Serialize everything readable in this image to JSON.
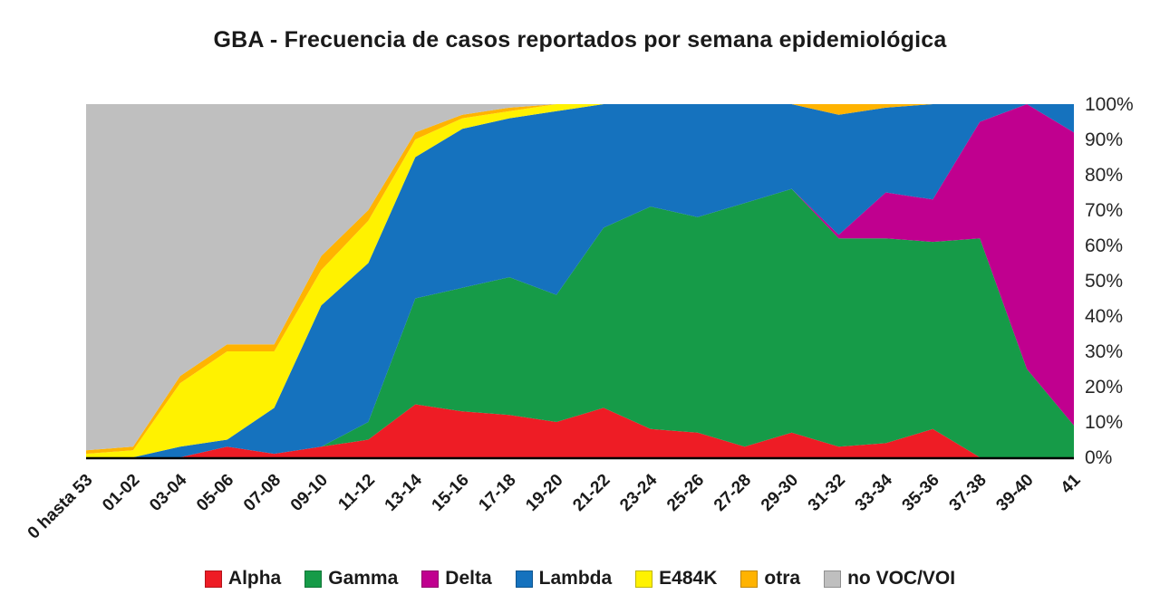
{
  "chart_data": {
    "type": "area",
    "stacked": true,
    "percent_stacked": true,
    "title": "GBA - Frecuencia de casos reportados por semana epidemiológica",
    "xlabel": "",
    "ylabel": "",
    "ylim": [
      0,
      100
    ],
    "grid": false,
    "legend_position": "bottom",
    "y_axis_side": "right",
    "y_ticks": [
      "0%",
      "10%",
      "20%",
      "30%",
      "40%",
      "50%",
      "60%",
      "70%",
      "80%",
      "90%",
      "100%"
    ],
    "categories": [
      "0 hasta 53",
      "01-02",
      "03-04",
      "05-06",
      "07-08",
      "09-10",
      "11-12",
      "13-14",
      "15-16",
      "17-18",
      "19-20",
      "21-22",
      "23-24",
      "25-26",
      "27-28",
      "29-30",
      "31-32",
      "33-34",
      "35-36",
      "37-38",
      "39-40",
      "41"
    ],
    "series": [
      {
        "name": "Alpha",
        "color": "#EE1C25",
        "values": [
          0,
          0,
          0,
          3,
          1,
          3,
          5,
          15,
          13,
          12,
          10,
          14,
          8,
          7,
          3,
          7,
          3,
          4,
          8,
          0,
          0,
          0
        ]
      },
      {
        "name": "Gamma",
        "color": "#169B48",
        "values": [
          0,
          0,
          0,
          0,
          0,
          0,
          5,
          30,
          35,
          39,
          36,
          51,
          63,
          61,
          69,
          69,
          59,
          58,
          53,
          62,
          25,
          9
        ]
      },
      {
        "name": "Delta",
        "color": "#C0008F",
        "values": [
          0,
          0,
          0,
          0,
          0,
          0,
          0,
          0,
          0,
          0,
          0,
          0,
          0,
          0,
          0,
          0,
          1,
          13,
          12,
          33,
          75,
          83
        ]
      },
      {
        "name": "Lambda",
        "color": "#1572BE",
        "values": [
          0,
          0,
          3,
          2,
          13,
          40,
          45,
          40,
          45,
          45,
          52,
          35,
          29,
          32,
          28,
          24,
          34,
          24,
          27,
          5,
          0,
          8
        ]
      },
      {
        "name": "E484K",
        "color": "#FFF200",
        "values": [
          1,
          2,
          18,
          25,
          16,
          10,
          12,
          5,
          3,
          2,
          2,
          0,
          0,
          0,
          0,
          0,
          0,
          0,
          0,
          0,
          0,
          0
        ]
      },
      {
        "name": "otra",
        "color": "#FFB300",
        "values": [
          1,
          1,
          2,
          2,
          2,
          4,
          3,
          2,
          1,
          1,
          0,
          0,
          0,
          0,
          0,
          0,
          3,
          1,
          0,
          0,
          0,
          0
        ]
      },
      {
        "name": "no VOC/VOI",
        "color": "#BFBFBF",
        "values": [
          98,
          97,
          77,
          68,
          68,
          43,
          30,
          8,
          3,
          1,
          0,
          0,
          0,
          0,
          0,
          0,
          0,
          0,
          0,
          0,
          0,
          0
        ]
      }
    ]
  }
}
